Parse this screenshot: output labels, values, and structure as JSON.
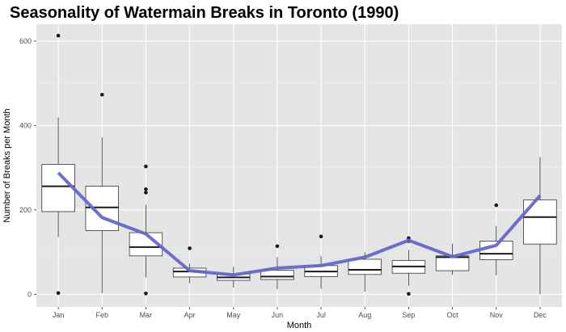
{
  "chart_data": {
    "type": "box",
    "title": "Seasonality of Watermain Breaks in Toronto (1990)",
    "xlabel": "Month",
    "ylabel": "Number of Breaks per Month",
    "ylim": [
      -30,
      640
    ],
    "yticks": [
      0,
      200,
      400,
      600
    ],
    "categories": [
      "Jan",
      "Feb",
      "Mar",
      "Apr",
      "May",
      "Jun",
      "Jul",
      "Aug",
      "Sep",
      "Oct",
      "Nov",
      "Dec"
    ],
    "boxes": [
      {
        "whisker_low": 135,
        "q1": 196,
        "median": 256,
        "q3": 308,
        "whisker_high": 419,
        "outliers": [
          613,
          3
        ]
      },
      {
        "whisker_low": 3,
        "q1": 151,
        "median": 206,
        "q3": 256,
        "whisker_high": 372,
        "outliers": [
          473
        ]
      },
      {
        "whisker_low": 40,
        "q1": 91,
        "median": 112,
        "q3": 146,
        "whisker_high": 212,
        "outliers": [
          303,
          249,
          241,
          2
        ]
      },
      {
        "whisker_low": 26,
        "q1": 41,
        "median": 54,
        "q3": 62,
        "whisker_high": 73,
        "outliers": [
          109
        ]
      },
      {
        "whisker_low": 16,
        "q1": 33,
        "median": 40,
        "q3": 48,
        "whisker_high": 65,
        "outliers": []
      },
      {
        "whisker_low": 12,
        "q1": 35,
        "median": 42,
        "q3": 57,
        "whisker_high": 88,
        "outliers": [
          114
        ]
      },
      {
        "whisker_low": 13,
        "q1": 42,
        "median": 54,
        "q3": 68,
        "whisker_high": 90,
        "outliers": [
          137
        ]
      },
      {
        "whisker_low": 6,
        "q1": 47,
        "median": 58,
        "q3": 83,
        "whisker_high": 100,
        "outliers": []
      },
      {
        "whisker_low": 20,
        "q1": 50,
        "median": 66,
        "q3": 80,
        "whisker_high": 105,
        "outliers": [
          133,
          126,
          1
        ]
      },
      {
        "whisker_low": 46,
        "q1": 56,
        "median": 88,
        "q3": 91,
        "whisker_high": 120,
        "outliers": []
      },
      {
        "whisker_low": 45,
        "q1": 82,
        "median": 96,
        "q3": 126,
        "whisker_high": 162,
        "outliers": [
          211
        ]
      },
      {
        "whisker_low": 0,
        "q1": 119,
        "median": 183,
        "q3": 224,
        "whisker_high": 325,
        "outliers": []
      }
    ],
    "trend_line": [
      288,
      182,
      143,
      56,
      46,
      62,
      68,
      88,
      128,
      89,
      116,
      234
    ],
    "colors": {
      "panel": "#e5e5e5",
      "grid_major": "#ffffff",
      "grid_minor": "#f0f0f0",
      "box_fill": "#ffffff",
      "box_stroke": "#333333",
      "trend": "#6666cc",
      "tick": "#4d4d4d"
    }
  }
}
